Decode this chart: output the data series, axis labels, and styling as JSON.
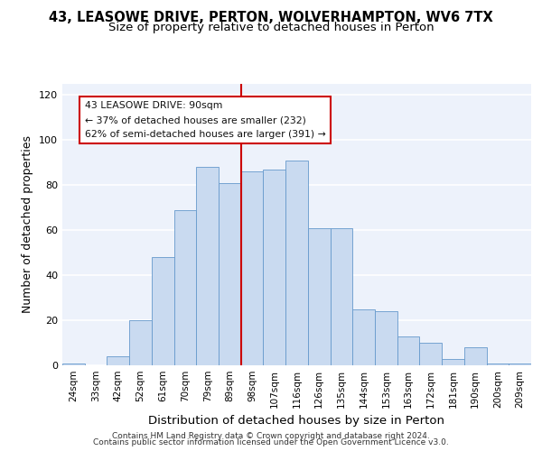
{
  "title_line1": "43, LEASOWE DRIVE, PERTON, WOLVERHAMPTON, WV6 7TX",
  "title_line2": "Size of property relative to detached houses in Perton",
  "xlabel": "Distribution of detached houses by size in Perton",
  "ylabel": "Number of detached properties",
  "bar_labels": [
    "24sqm",
    "33sqm",
    "42sqm",
    "52sqm",
    "61sqm",
    "70sqm",
    "79sqm",
    "89sqm",
    "98sqm",
    "107sqm",
    "116sqm",
    "126sqm",
    "135sqm",
    "144sqm",
    "153sqm",
    "163sqm",
    "172sqm",
    "181sqm",
    "190sqm",
    "200sqm",
    "209sqm"
  ],
  "bar_heights": [
    1,
    0,
    4,
    20,
    48,
    69,
    88,
    81,
    86,
    87,
    91,
    61,
    61,
    25,
    24,
    13,
    10,
    3,
    8,
    1,
    1
  ],
  "bar_color": "#c9daf0",
  "bar_edge_color": "#6699cc",
  "vline_x": 7.5,
  "vline_color": "#cc0000",
  "annotation_text": "43 LEASOWE DRIVE: 90sqm\n← 37% of detached houses are smaller (232)\n62% of semi-detached houses are larger (391) →",
  "annotation_box_color": "#cc0000",
  "ylim": [
    0,
    125
  ],
  "yticks": [
    0,
    20,
    40,
    60,
    80,
    100,
    120
  ],
  "footer_line1": "Contains HM Land Registry data © Crown copyright and database right 2024.",
  "footer_line2": "Contains public sector information licensed under the Open Government Licence v3.0.",
  "background_color": "#edf2fb",
  "grid_color": "#ffffff",
  "title_fontsize": 10.5,
  "subtitle_fontsize": 9.5,
  "axis_label_fontsize": 9,
  "tick_fontsize": 7.5,
  "footer_fontsize": 6.5
}
